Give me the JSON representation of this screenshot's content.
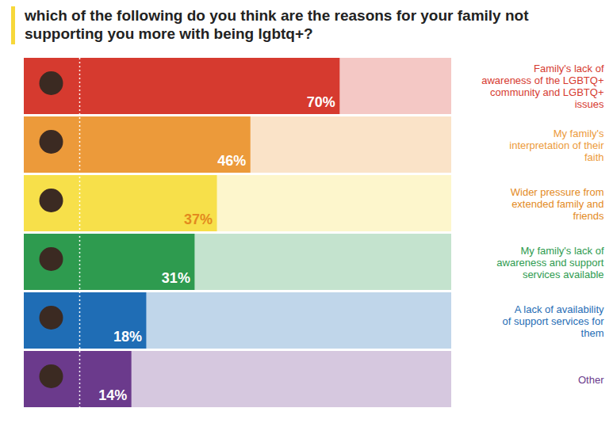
{
  "chart_data": {
    "type": "bar",
    "orientation": "horizontal",
    "title": "which of the following do you think are the reasons for your family not supporting you more with being lgbtq+?",
    "categories": [
      "Family's lack of awareness of the LGBTQ+ community and LGBTQ+ issues",
      "My family's interpretation of their faith",
      "Wider pressure from extended family and friends",
      "My family's lack of awareness and support services available",
      "A lack of availability of support services for them",
      "Other"
    ],
    "values": [
      70,
      46,
      37,
      31,
      18,
      14
    ],
    "value_labels": [
      "70%",
      "46%",
      "37%",
      "31%",
      "18%",
      "14%"
    ],
    "colors": [
      "#d63a2f",
      "#ec9a3a",
      "#f7e04a",
      "#2e9b4f",
      "#1f6db5",
      "#6b3a8c"
    ],
    "xlim": [
      0,
      100
    ],
    "data_labels": true,
    "tick_labels": false
  }
}
